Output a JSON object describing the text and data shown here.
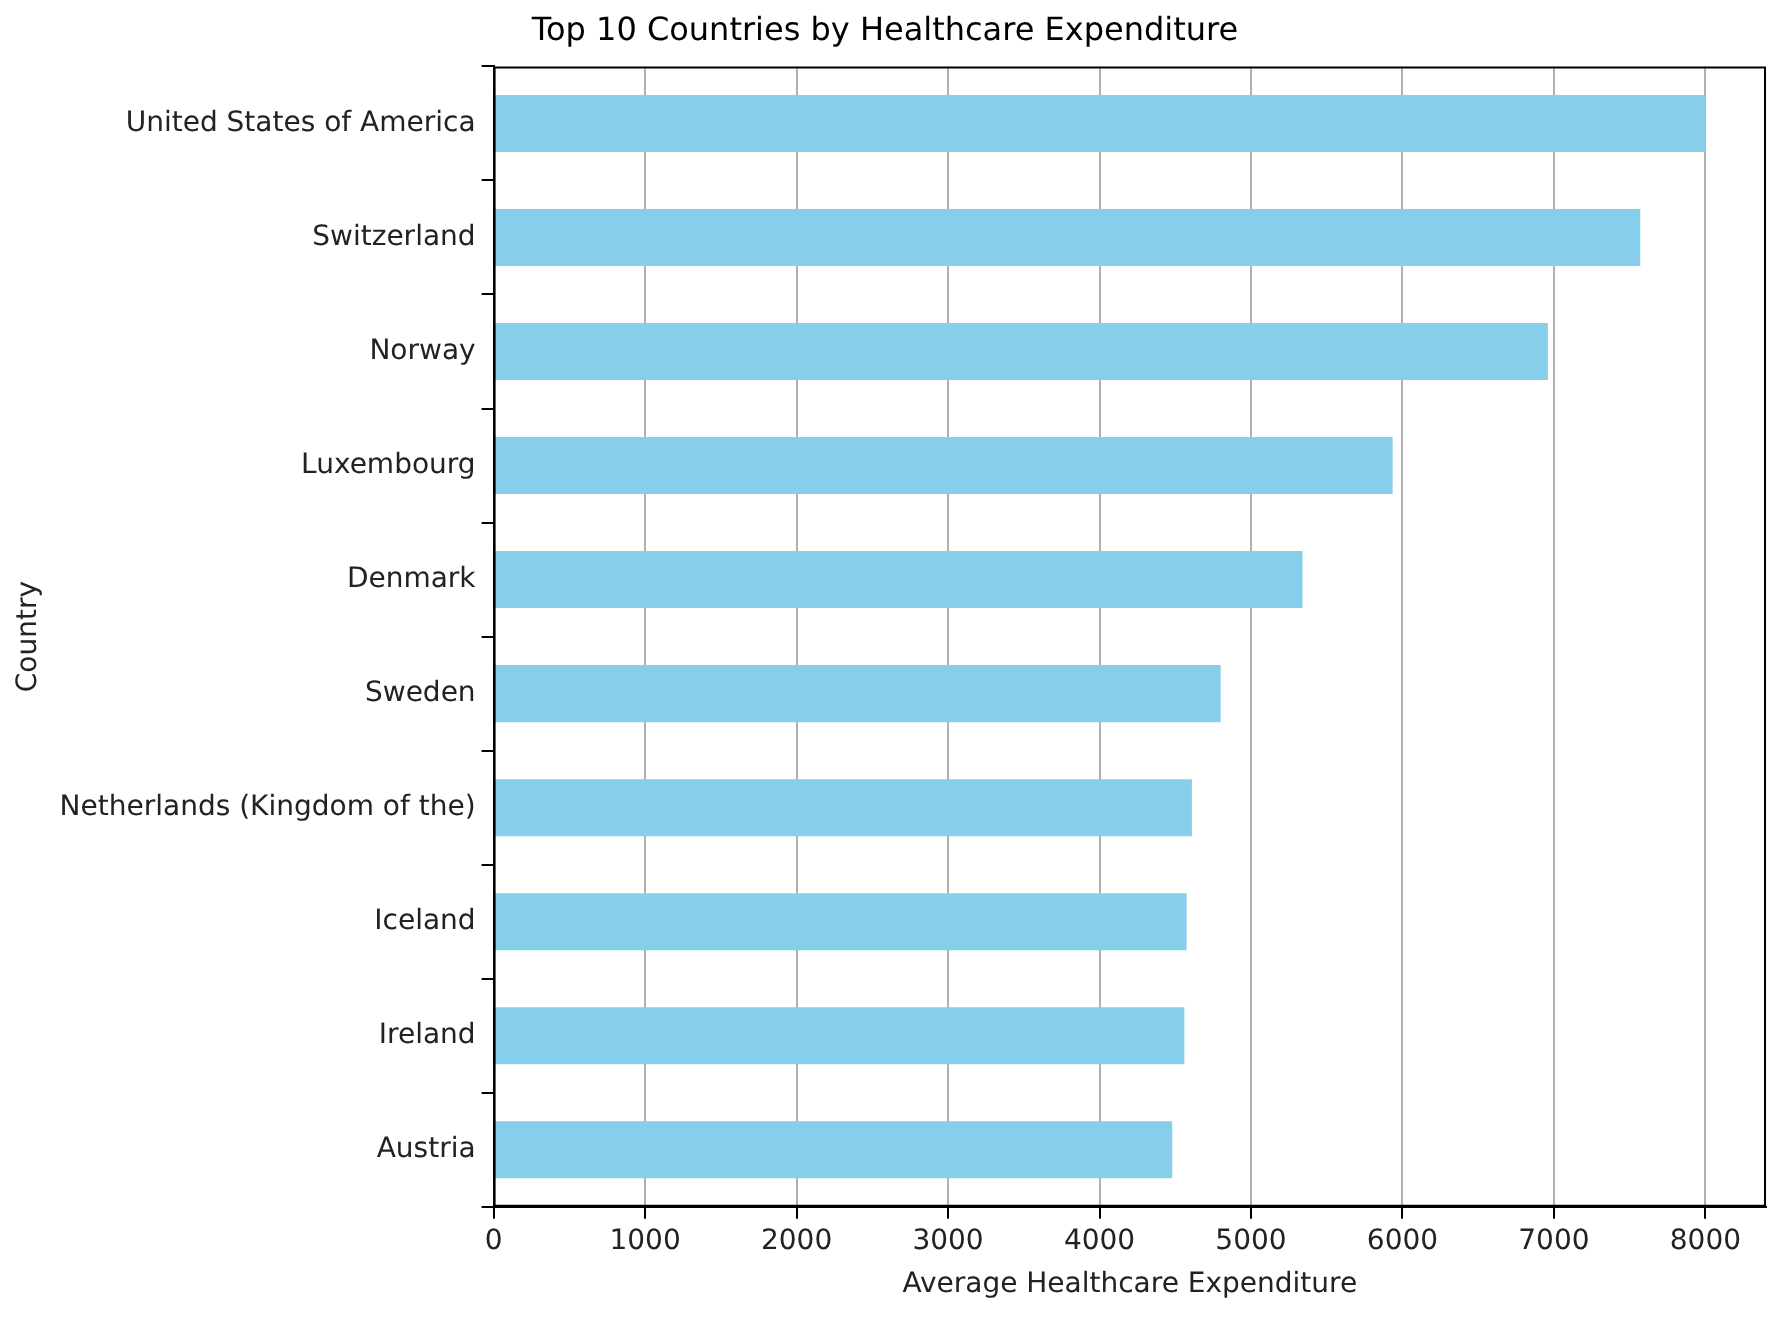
{
  "chart_data": {
    "type": "bar",
    "orientation": "horizontal",
    "title": "Top 10 Countries by Healthcare Expenditure",
    "xlabel": "Average Healthcare Expenditure",
    "ylabel": "Country",
    "categories": [
      "United States of America",
      "Switzerland",
      "Norway",
      "Luxembourg",
      "Denmark",
      "Sweden",
      "Netherlands (Kingdom of the)",
      "Iceland",
      "Ireland",
      "Austria"
    ],
    "values": [
      8000,
      7570,
      6960,
      5935,
      5340,
      4800,
      4610,
      4575,
      4560,
      4480
    ],
    "color": "#87ceeb",
    "xlim": [
      0,
      8400
    ],
    "xticks": [
      0,
      1000,
      2000,
      3000,
      4000,
      5000,
      6000,
      7000,
      8000
    ],
    "grid": "x",
    "legend": false
  }
}
